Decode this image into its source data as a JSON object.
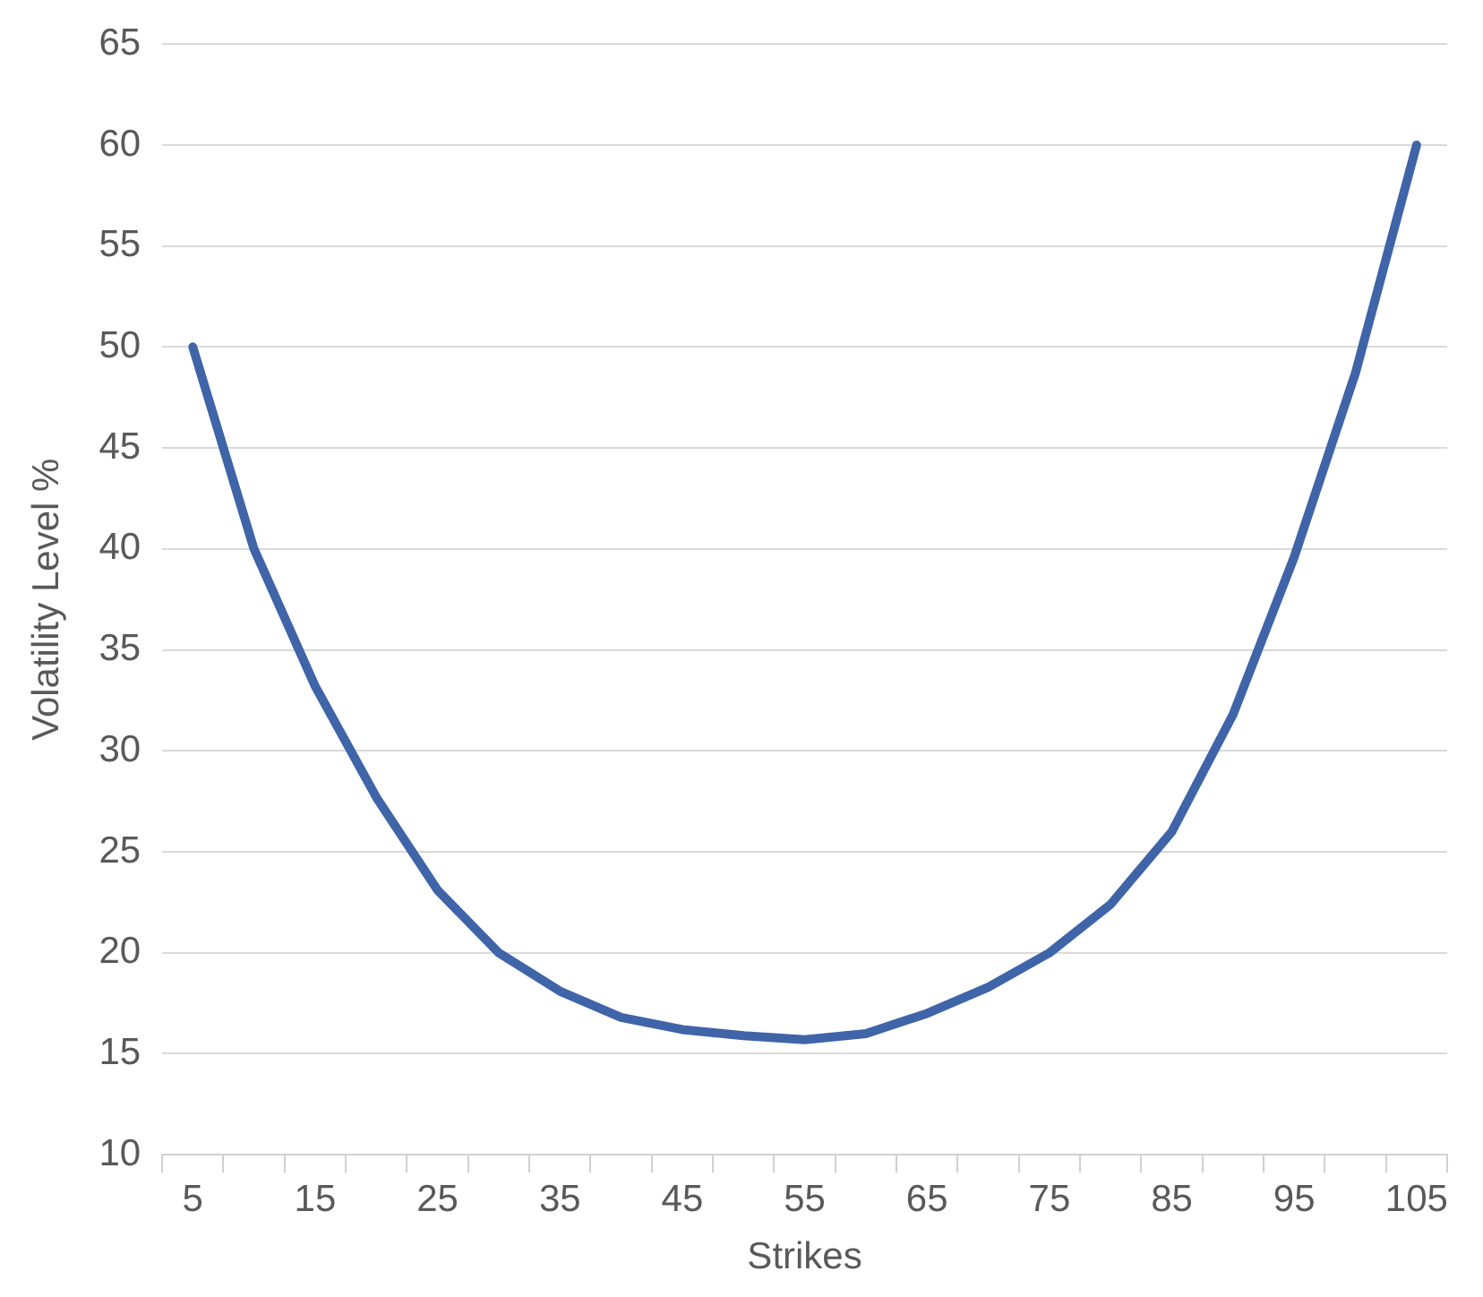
{
  "chart_data": {
    "type": "line",
    "xlabel": "Strikes",
    "ylabel": "Volatility Level %",
    "categories": [
      "5",
      null,
      "15",
      null,
      "25",
      null,
      "35",
      null,
      "45",
      null,
      "55",
      null,
      "65",
      null,
      "75",
      null,
      "85",
      null,
      "95",
      null,
      "105"
    ],
    "series": [
      {
        "color": "#3f64a8",
        "values": [
          50,
          40,
          33.2,
          27.7,
          23.1,
          20,
          18.1,
          16.8,
          16.2,
          15.9,
          15.7,
          16,
          17,
          18.3,
          20,
          22.4,
          26,
          31.8,
          39.6,
          48.7,
          60
        ]
      }
    ],
    "ylim": [
      10,
      65
    ],
    "yticks": [
      10,
      15,
      20,
      25,
      30,
      35,
      40,
      45,
      50,
      55,
      60,
      65
    ],
    "grid": "y",
    "legend": false,
    "marker": "none",
    "line_style": "solid"
  }
}
